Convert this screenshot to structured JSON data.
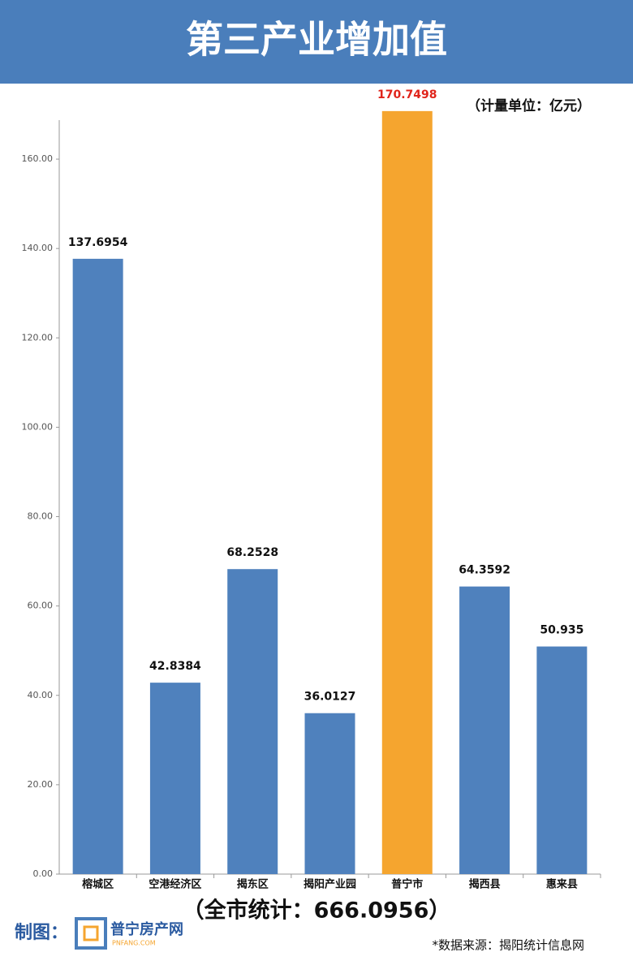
{
  "chart_data": {
    "type": "bar",
    "title": "第三产业增加值",
    "unit": "（计量单位：亿元）",
    "categories": [
      "榕城区",
      "空港经济区",
      "揭东区",
      "揭阳产业园",
      "普宁市",
      "揭西县",
      "惠来县"
    ],
    "values": [
      137.6954,
      42.8384,
      68.2528,
      36.0127,
      170.7498,
      64.3592,
      50.935
    ],
    "colors": [
      "#4f81bd",
      "#4f81bd",
      "#4f81bd",
      "#4f81bd",
      "#f5a52f",
      "#4f81bd",
      "#4f81bd"
    ],
    "label_colors": [
      "#111111",
      "#111111",
      "#111111",
      "#111111",
      "#e0241b",
      "#111111",
      "#111111"
    ],
    "ylim": [
      0,
      170
    ],
    "yticks": [
      {
        "value": 0,
        "label": "0.00"
      },
      {
        "value": 20,
        "label": "20.00"
      },
      {
        "value": 40,
        "label": "40.00"
      },
      {
        "value": 60,
        "label": "60.00"
      },
      {
        "value": 80,
        "label": "80.00"
      },
      {
        "value": 100,
        "label": "100.00"
      },
      {
        "value": 120,
        "label": "120.00"
      },
      {
        "value": 140,
        "label": "140.00"
      },
      {
        "value": 160,
        "label": "160.00"
      }
    ],
    "grid": false,
    "total": "（全市统计：666.0956）"
  },
  "footer": {
    "made_by": "制图：",
    "logo_text": "普宁房产网",
    "logo_sub": "PNFANG.COM",
    "source": "*数据来源：揭阳统计信息网"
  }
}
